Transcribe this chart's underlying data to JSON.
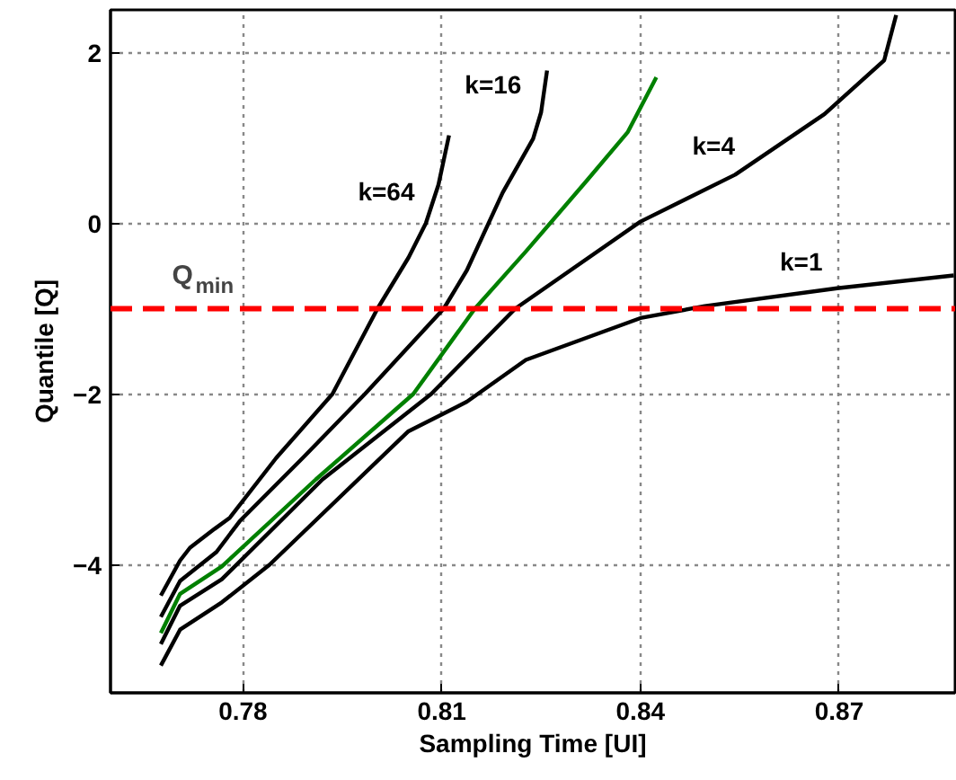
{
  "chart_data": {
    "type": "line",
    "xlabel": "Sampling Time [UI]",
    "ylabel": "Quantile [Q]",
    "xlim": [
      0.76,
      0.8875
    ],
    "ylim": [
      -5.5,
      2.5
    ],
    "xticks": [
      0.78,
      0.81,
      0.84,
      0.87
    ],
    "yticks": [
      -4,
      -2,
      0,
      2
    ],
    "grid": true,
    "line_style": "solid",
    "marker": "none",
    "series": [
      {
        "name": "k=64",
        "color": "#000000",
        "x": [
          0.7676,
          0.7705,
          0.772,
          0.7757,
          0.778,
          0.785,
          0.7935,
          0.8003,
          0.805,
          0.8076,
          0.8095,
          0.8111
        ],
        "values": [
          -4.36,
          -3.95,
          -3.8,
          -3.58,
          -3.45,
          -2.75,
          -2.0,
          -1.0,
          -0.4,
          0.0,
          0.45,
          1.03
        ]
      },
      {
        "name": "k=16",
        "color": "#000000",
        "x": [
          0.7676,
          0.7705,
          0.776,
          0.7795,
          0.789,
          0.7984,
          0.8103,
          0.8138,
          0.8192,
          0.8238,
          0.825,
          0.8259
        ],
        "values": [
          -4.61,
          -4.19,
          -3.85,
          -3.49,
          -2.75,
          -2.0,
          -1.0,
          -0.55,
          0.36,
          0.99,
          1.3,
          1.79
        ]
      },
      {
        "color": "#008000",
        "x": [
          0.7676,
          0.7705,
          0.7768,
          0.791,
          0.8057,
          0.815,
          0.8227,
          0.8319,
          0.8381,
          0.8424
        ],
        "values": [
          -4.8,
          -4.34,
          -4.02,
          -3.0,
          -2.0,
          -1.0,
          -0.33,
          0.5,
          1.07,
          1.71
        ]
      },
      {
        "name": "k=4",
        "color": "#000000",
        "x": [
          0.7676,
          0.7705,
          0.7768,
          0.792,
          0.8084,
          0.8211,
          0.84,
          0.8543,
          0.8678,
          0.8768,
          0.8786
        ],
        "values": [
          -4.93,
          -4.48,
          -4.17,
          -3.0,
          -2.0,
          -1.0,
          0.02,
          0.57,
          1.28,
          1.91,
          2.44
        ]
      },
      {
        "name": "k=1",
        "color": "#000000",
        "x": [
          0.7676,
          0.7705,
          0.7768,
          0.784,
          0.8049,
          0.8138,
          0.8227,
          0.84,
          0.8497,
          0.8697,
          0.8873
        ],
        "values": [
          -5.18,
          -4.76,
          -4.44,
          -4.0,
          -2.44,
          -2.09,
          -1.6,
          -1.11,
          -0.97,
          -0.76,
          -0.61
        ]
      }
    ],
    "ref_lines": [
      {
        "axis": "y",
        "value": -1,
        "label": "Q$_{min}$",
        "color": "#ff0000",
        "line_style": "dashed"
      }
    ]
  }
}
